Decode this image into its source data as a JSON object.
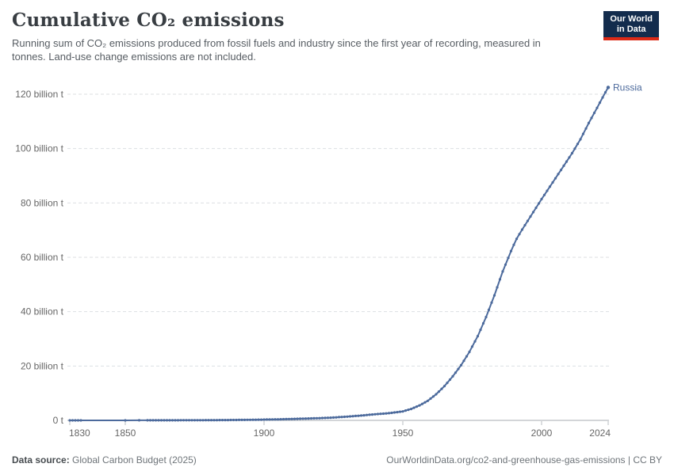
{
  "header": {
    "title": "Cumulative CO₂ emissions",
    "subtitle": "Running sum of CO₂ emissions produced from fossil fuels and industry since the first year of recording, measured in tonnes. Land-use change emissions are not included.",
    "logo": {
      "line1": "Our World",
      "line2": "in Data"
    }
  },
  "footer": {
    "source_label": "Data source:",
    "source_value": " Global Carbon Budget (2025)",
    "link": "OurWorldinData.org/co2-and-greenhouse-gas-emissions | CC BY"
  },
  "colors": {
    "series": "#4c6a9c",
    "gridline": "#dcdfe2",
    "axis_line": "#a7abb0",
    "tick_text": "#666666",
    "logo_bg": "#132c4d",
    "logo_red": "#dc2a17"
  },
  "chart_data": {
    "type": "line",
    "title": "Cumulative CO₂ emissions",
    "unit": "billion t",
    "xlabel": "",
    "ylabel": "",
    "xlim": [
      1830,
      2024
    ],
    "ylim": [
      0,
      120
    ],
    "grid": "dashed-horizontal",
    "legend_position": "end-of-line-label",
    "x_ticks": [
      1830,
      1850,
      1900,
      1950,
      2000,
      2024
    ],
    "y_ticks": [
      {
        "value": 120,
        "label": "120 billion t"
      },
      {
        "value": 100,
        "label": "100 billion t"
      },
      {
        "value": 80,
        "label": "80 billion t"
      },
      {
        "value": 60,
        "label": "60 billion t"
      },
      {
        "value": 40,
        "label": "40 billion t"
      },
      {
        "value": 20,
        "label": "20 billion t"
      },
      {
        "value": 0,
        "label": "0 t"
      }
    ],
    "series": [
      {
        "name": "Russia",
        "color": "#4c6a9c",
        "plotted_year_segments": [
          [
            1830,
            1834
          ],
          [
            1850,
            1850
          ],
          [
            1855,
            1855
          ],
          [
            1858,
            2024
          ]
        ],
        "anchor_points": [
          [
            1830,
            0.002
          ],
          [
            1834,
            0.005
          ],
          [
            1850,
            0.012
          ],
          [
            1855,
            0.016
          ],
          [
            1858,
            0.02
          ],
          [
            1865,
            0.032
          ],
          [
            1870,
            0.045
          ],
          [
            1875,
            0.06
          ],
          [
            1880,
            0.08
          ],
          [
            1885,
            0.11
          ],
          [
            1890,
            0.15
          ],
          [
            1895,
            0.21
          ],
          [
            1900,
            0.29
          ],
          [
            1905,
            0.39
          ],
          [
            1910,
            0.52
          ],
          [
            1915,
            0.66
          ],
          [
            1920,
            0.82
          ],
          [
            1925,
            1.05
          ],
          [
            1930,
            1.38
          ],
          [
            1935,
            1.78
          ],
          [
            1940,
            2.25
          ],
          [
            1945,
            2.65
          ],
          [
            1950,
            3.3
          ],
          [
            1953,
            4.2
          ],
          [
            1956,
            5.5
          ],
          [
            1959,
            7.2
          ],
          [
            1962,
            9.6
          ],
          [
            1965,
            12.6
          ],
          [
            1968,
            16.2
          ],
          [
            1971,
            20.3
          ],
          [
            1974,
            25.2
          ],
          [
            1977,
            31.0
          ],
          [
            1980,
            38.0
          ],
          [
            1983,
            46.0
          ],
          [
            1986,
            54.8
          ],
          [
            1989,
            62.3
          ],
          [
            1990,
            64.6
          ],
          [
            1991,
            66.8
          ],
          [
            1993,
            70.2
          ],
          [
            1995,
            73.4
          ],
          [
            1997,
            76.6
          ],
          [
            2000,
            81.4
          ],
          [
            2003,
            86.0
          ],
          [
            2006,
            90.6
          ],
          [
            2009,
            95.2
          ],
          [
            2011,
            98.3
          ],
          [
            2014,
            103.4
          ],
          [
            2017,
            109.4
          ],
          [
            2020,
            115.0
          ],
          [
            2022,
            118.8
          ],
          [
            2023,
            120.7
          ],
          [
            2024,
            122.5
          ]
        ]
      }
    ]
  }
}
